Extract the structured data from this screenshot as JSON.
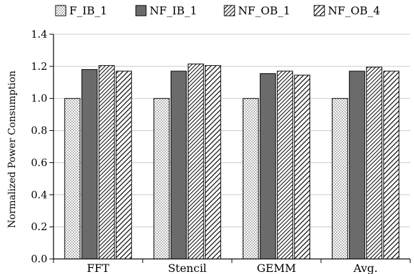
{
  "chart_data": {
    "type": "bar",
    "title": "",
    "xlabel": "",
    "ylabel": "Normalized Power Consumption",
    "categories": [
      "FFT",
      "Stencil",
      "GEMM",
      "Avg."
    ],
    "series": [
      {
        "name": "F_IB_1",
        "pattern": "dots",
        "values": [
          1.0,
          1.0,
          1.0,
          1.0
        ]
      },
      {
        "name": "NF_IB_1",
        "pattern": "solid-gray",
        "values": [
          1.18,
          1.17,
          1.155,
          1.17
        ]
      },
      {
        "name": "NF_OB_1",
        "pattern": "hatch-dense",
        "values": [
          1.205,
          1.215,
          1.17,
          1.195
        ]
      },
      {
        "name": "NF_OB_4",
        "pattern": "hatch-medium",
        "values": [
          1.17,
          1.205,
          1.145,
          1.17
        ]
      }
    ],
    "ylim": [
      0.0,
      1.4
    ],
    "yticks": [
      "0.0",
      "0.2",
      "0.4",
      "0.6",
      "0.8",
      "1.0",
      "1.2",
      "1.4"
    ],
    "grid": "horizontal",
    "legend": "top"
  },
  "colors": {
    "grid": "#c8c8c8",
    "bar_dark": "#6b6b6b",
    "outline": "#000000"
  }
}
